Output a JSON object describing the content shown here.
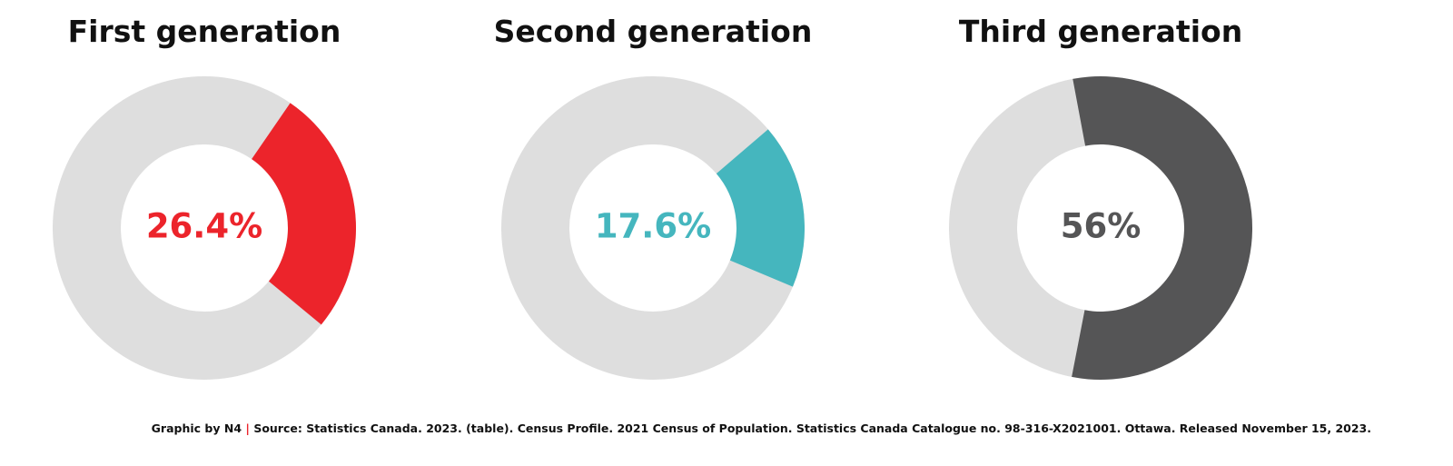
{
  "chart_data": [
    {
      "type": "donut",
      "title": "First generation",
      "values": [
        26.4
      ],
      "value_labels": [
        "26.4%"
      ],
      "colors": [
        "#ec242b"
      ],
      "track_color": "#dedede"
    },
    {
      "type": "donut",
      "title": "Second generation",
      "values": [
        17.6
      ],
      "value_labels": [
        "17.6%"
      ],
      "colors": [
        "#45b6be"
      ],
      "track_color": "#dedede"
    },
    {
      "type": "donut",
      "title": "Third generation",
      "values": [
        56
      ],
      "value_labels": [
        "56%"
      ],
      "colors": [
        "#555556"
      ],
      "track_color": "#dedede"
    }
  ],
  "footer": {
    "credit": "Graphic by N4",
    "separator": "|",
    "separator_color": "#ec242b",
    "source": "Source: Statistics Canada. 2023. (table). Census Profile. 2021 Census of Population. Statistics Canada Catalogue no. 98-316-X2021001. Ottawa. Released November 15, 2023."
  }
}
